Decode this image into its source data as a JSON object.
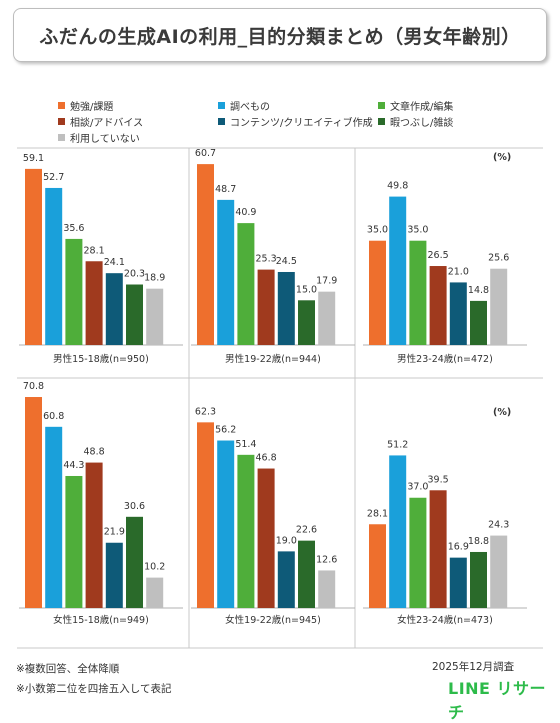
{
  "title": "ふだんの生成AIの利用_目的分類まとめ（男女年齢別）",
  "colors": [
    "#ee6f2d",
    "#1aa0da",
    "#4fae3a",
    "#a03a1e",
    "#0e5a78",
    "#2a6a2a",
    "#bfbfbf"
  ],
  "legend": [
    {
      "label": "勉強/課題",
      "color": "#ee6f2d"
    },
    {
      "label": "調べもの",
      "color": "#1aa0da"
    },
    {
      "label": "文章作成/編集",
      "color": "#4fae3a"
    },
    {
      "label": "相談/アドバイス",
      "color": "#a03a1e"
    },
    {
      "label": "コンテンツ/クリエイティブ作成",
      "color": "#0e5a78"
    },
    {
      "label": "暇つぶし/雑談",
      "color": "#2a6a2a"
    },
    {
      "label": "利用していない",
      "color": "#bfbfbf"
    }
  ],
  "unit": "(%)",
  "chart_data": {
    "type": "bar",
    "categories": [
      "勉強/課題",
      "調べもの",
      "文章作成/編集",
      "相談/アドバイス",
      "コンテンツ/クリエイティブ作成",
      "暇つぶし/雑談",
      "利用していない"
    ],
    "panels": [
      {
        "label": "男性15-18歳(n=950)",
        "values": [
          59.1,
          52.7,
          35.6,
          28.1,
          24.1,
          20.3,
          18.9
        ]
      },
      {
        "label": "男性19-22歳(n=944)",
        "values": [
          60.7,
          48.7,
          40.9,
          25.3,
          24.5,
          15.0,
          17.9
        ]
      },
      {
        "label": "男性23-24歳(n=472)",
        "values": [
          35.0,
          49.8,
          35.0,
          26.5,
          21.0,
          14.8,
          25.6
        ]
      },
      {
        "label": "女性15-18歳(n=949)",
        "values": [
          70.8,
          60.8,
          44.3,
          48.8,
          21.9,
          30.6,
          10.2
        ]
      },
      {
        "label": "女性19-22歳(n=945)",
        "values": [
          62.3,
          56.2,
          51.4,
          46.8,
          19.0,
          22.6,
          12.6
        ]
      },
      {
        "label": "女性23-24歳(n=473)",
        "values": [
          28.1,
          51.2,
          37.0,
          39.5,
          16.9,
          18.8,
          24.3
        ]
      }
    ],
    "ylim": [
      0,
      75
    ],
    "grid": false
  },
  "footnotes": {
    "note1": "※複数回答、全体降順",
    "note2": "※小数第二位を四捨五入して表記",
    "date": "2025年12月調査"
  },
  "brand": "LINE リサーチ"
}
